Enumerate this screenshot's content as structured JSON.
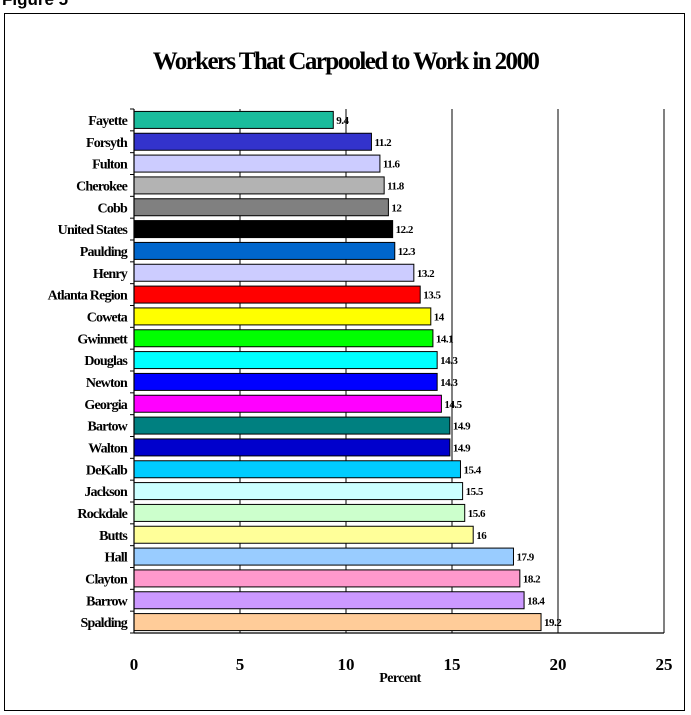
{
  "figure_label": "Figure 5",
  "chart_data": {
    "type": "bar",
    "orientation": "horizontal",
    "title": "Workers That Carpooled to Work in 2000",
    "xlabel": "Percent",
    "ylabel": "",
    "xlim": [
      0,
      25
    ],
    "xticks": [
      0,
      5,
      10,
      15,
      20,
      25
    ],
    "grid": "vertical",
    "legend": "none",
    "categories": [
      "Fayette",
      "Forsyth",
      "Fulton",
      "Cherokee",
      "Cobb",
      "United States",
      "Paulding",
      "Henry",
      "Atlanta Region",
      "Coweta",
      "Gwinnett",
      "Douglas",
      "Newton",
      "Georgia",
      "Bartow",
      "Walton",
      "DeKalb",
      "Jackson",
      "Rockdale",
      "Butts",
      "Hall",
      "Clayton",
      "Barrow",
      "Spalding"
    ],
    "values": [
      9.4,
      11.2,
      11.6,
      11.8,
      12,
      12.2,
      12.3,
      13.2,
      13.5,
      14,
      14.1,
      14.3,
      14.3,
      14.5,
      14.9,
      14.9,
      15.4,
      15.5,
      15.6,
      16,
      17.9,
      18.2,
      18.4,
      19.2
    ],
    "value_labels": [
      "9.4",
      "11.2",
      "11.6",
      "11.8",
      "12",
      "12.2",
      "12.3",
      "13.2",
      "13.5",
      "14",
      "14.1",
      "14.3",
      "14.3",
      "14.5",
      "14.9",
      "14.9",
      "15.4",
      "15.5",
      "15.6",
      "16",
      "17.9",
      "18.2",
      "18.4",
      "19.2"
    ],
    "colors": [
      "#1ABC9C",
      "#3333CC",
      "#CCCCFF",
      "#B3B3B3",
      "#808080",
      "#000000",
      "#0066CC",
      "#CCCCFF",
      "#FF0000",
      "#FFFF00",
      "#00FF00",
      "#00FFFF",
      "#0000FF",
      "#FF00FF",
      "#008080",
      "#0000CC",
      "#00CCFF",
      "#CCFFFF",
      "#CCFFCC",
      "#FFFF99",
      "#99CCFF",
      "#FF99CC",
      "#CC99FF",
      "#FFCC99"
    ]
  }
}
